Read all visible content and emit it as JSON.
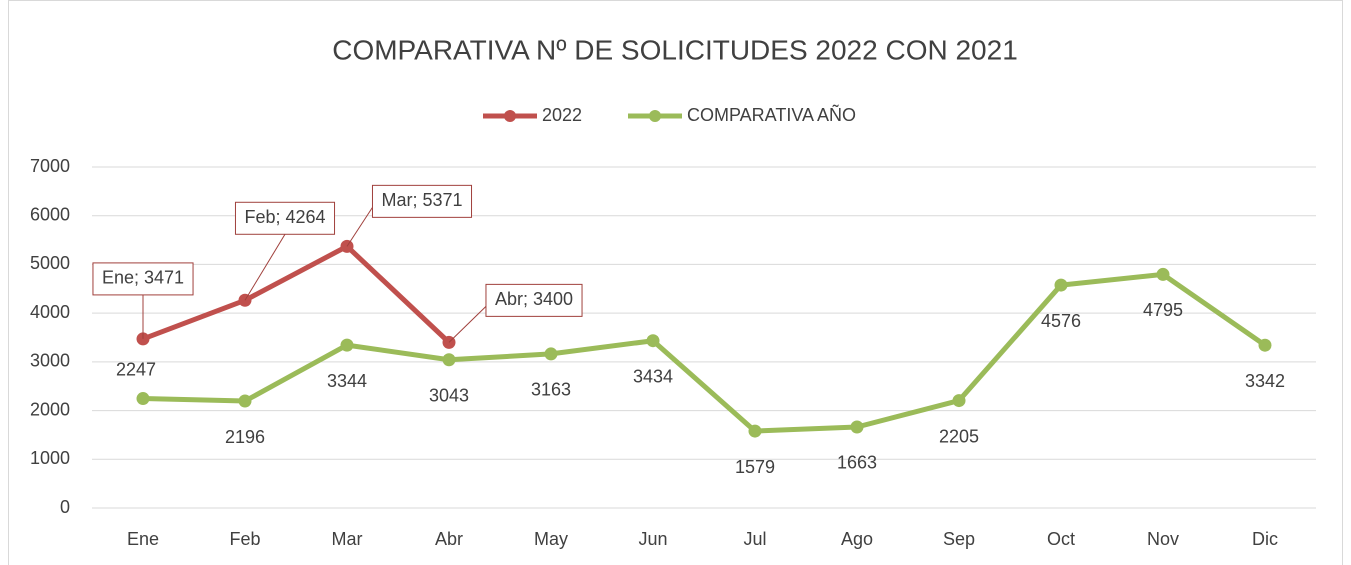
{
  "chart_data": {
    "type": "line",
    "title": "COMPARATIVA Nº DE SOLICITUDES 2022 CON 2021",
    "categories": [
      "Ene",
      "Feb",
      "Mar",
      "Abr",
      "May",
      "Jun",
      "Jul",
      "Ago",
      "Sep",
      "Oct",
      "Nov",
      "Dic"
    ],
    "series": [
      {
        "name": "2022",
        "color": "#c0504d",
        "values": [
          3471,
          4264,
          5371,
          3400,
          null,
          null,
          null,
          null,
          null,
          null,
          null,
          null
        ],
        "value_labels": [
          "Ene; 3471",
          "Feb; 4264",
          "Mar; 5371",
          "Abr; 3400",
          null,
          null,
          null,
          null,
          null,
          null,
          null,
          null
        ]
      },
      {
        "name": "COMPARATIVA AÑO",
        "color": "#9bbb59",
        "values": [
          2247,
          2196,
          3344,
          3043,
          3163,
          3434,
          1579,
          1663,
          2205,
          4576,
          4795,
          3342
        ]
      }
    ],
    "ylim": [
      0,
      7000
    ],
    "yticks": [
      0,
      1000,
      2000,
      3000,
      4000,
      5000,
      6000,
      7000
    ],
    "grid": true,
    "legend": "top"
  }
}
